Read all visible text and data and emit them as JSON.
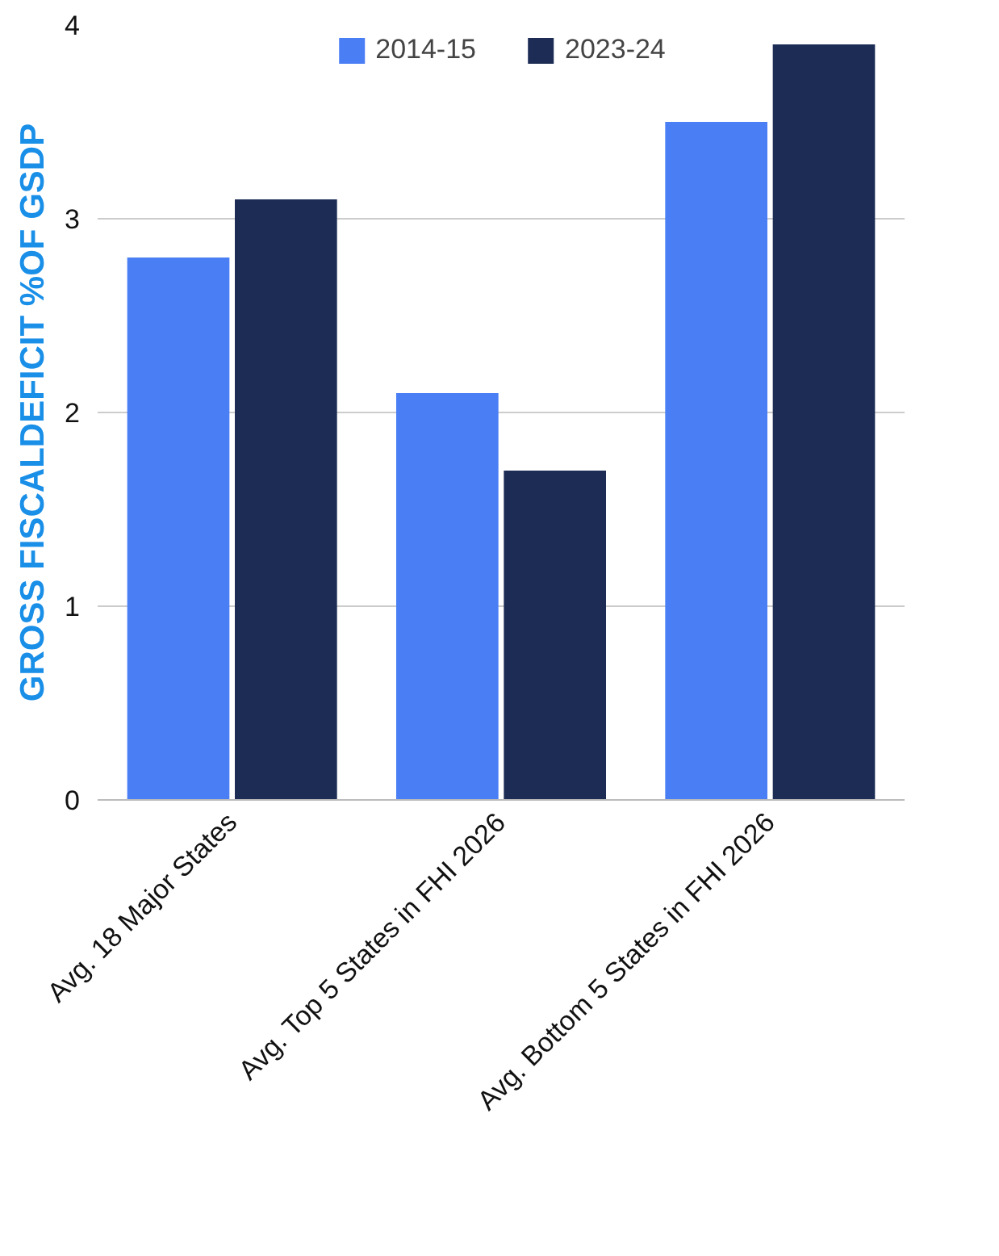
{
  "chart_data": {
    "type": "bar",
    "ylabel": "GROSS FISCALDEFICIT %OF GSDP",
    "categories": [
      "Avg. 18 Major States",
      "Avg. Top 5 States in FHI 2026",
      "Avg. Bottom 5 States in FHI 2026"
    ],
    "series": [
      {
        "name": "2014-15",
        "color": "#4a7ef5",
        "values": [
          2.8,
          2.1,
          3.5
        ]
      },
      {
        "name": "2023-24",
        "color": "#1c2c55",
        "values": [
          3.1,
          1.7,
          3.9
        ]
      }
    ],
    "ylim": [
      0,
      4
    ],
    "yticks": [
      0,
      1,
      2,
      3,
      4
    ],
    "grid": "y",
    "legend": "top"
  }
}
